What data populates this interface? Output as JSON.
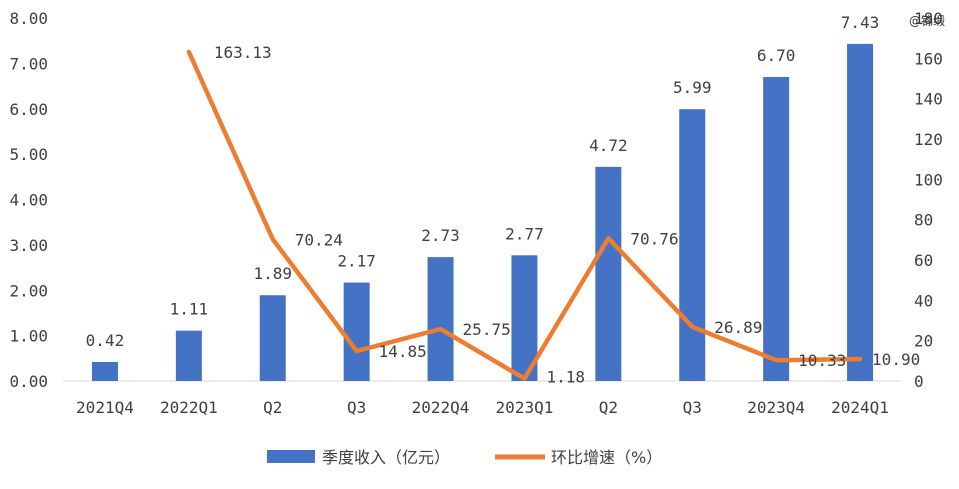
{
  "chart_data": {
    "type": "bar",
    "categories": [
      "2021Q4",
      "2022Q1",
      "Q2",
      "Q3",
      "2022Q4",
      "2023Q1",
      "Q2",
      "Q3",
      "2023Q4",
      "2024Q1"
    ],
    "series": [
      {
        "name": "季度收入（亿元）",
        "type": "bar",
        "axis": "left",
        "color": "#4472C4",
        "values": [
          0.42,
          1.11,
          1.89,
          2.17,
          2.73,
          2.77,
          4.72,
          5.99,
          6.7,
          7.43
        ],
        "labels": [
          "0.42",
          "1.11",
          "1.89",
          "2.17",
          "2.73",
          "2.77",
          "4.72",
          "5.99",
          "6.70",
          "7.43"
        ]
      },
      {
        "name": "环比增速（%）",
        "type": "line",
        "axis": "right",
        "color": "#ED7D31",
        "values": [
          null,
          163.13,
          70.24,
          14.85,
          25.75,
          1.18,
          70.76,
          26.89,
          10.33,
          10.9
        ],
        "labels": [
          "",
          "163.13",
          "70.24",
          "14.85",
          "25.75",
          "1.18",
          "70.76",
          "26.89",
          "10.33",
          "10.90"
        ]
      }
    ],
    "y_left": {
      "min": 0,
      "max": 8,
      "ticks": [
        "0.00",
        "1.00",
        "2.00",
        "3.00",
        "4.00",
        "5.00",
        "6.00",
        "7.00",
        "8.00"
      ]
    },
    "y_right": {
      "min": 0,
      "max": 180,
      "ticks": [
        "0",
        "20",
        "40",
        "60",
        "80",
        "100",
        "120",
        "140",
        "160",
        "180"
      ]
    },
    "grid": false,
    "legend_position": "bottom"
  },
  "watermark": "@锦缎"
}
